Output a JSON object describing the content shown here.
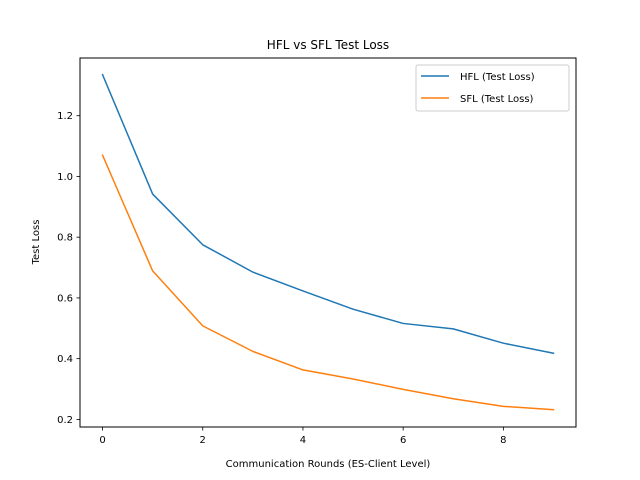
{
  "chart_data": {
    "type": "line",
    "title": "HFL vs SFL Test Loss",
    "xlabel": "Communication Rounds (ES-Client Level)",
    "ylabel": "Test Loss",
    "x": [
      0,
      1,
      2,
      3,
      4,
      5,
      6,
      7,
      8,
      9
    ],
    "xticks": [
      0,
      2,
      4,
      6,
      8
    ],
    "xtick_labels": [
      "0",
      "2",
      "4",
      "6",
      "8"
    ],
    "yticks": [
      0.2,
      0.4,
      0.6,
      0.8,
      1.0,
      1.2
    ],
    "ytick_labels": [
      "0.2",
      "0.4",
      "0.6",
      "0.8",
      "1.0",
      "1.2"
    ],
    "xlim": [
      -0.45,
      9.45
    ],
    "ylim": [
      0.175,
      1.39
    ],
    "grid": false,
    "legend_position": "top-right",
    "series": [
      {
        "name": "HFL (Test Loss)",
        "color": "#1f77b4",
        "values": [
          1.335,
          0.942,
          0.775,
          0.685,
          0.623,
          0.563,
          0.516,
          0.498,
          0.451,
          0.418
        ]
      },
      {
        "name": "SFL (Test Loss)",
        "color": "#ff7f0e",
        "values": [
          1.07,
          0.689,
          0.508,
          0.424,
          0.363,
          0.333,
          0.299,
          0.268,
          0.243,
          0.232
        ]
      }
    ]
  }
}
